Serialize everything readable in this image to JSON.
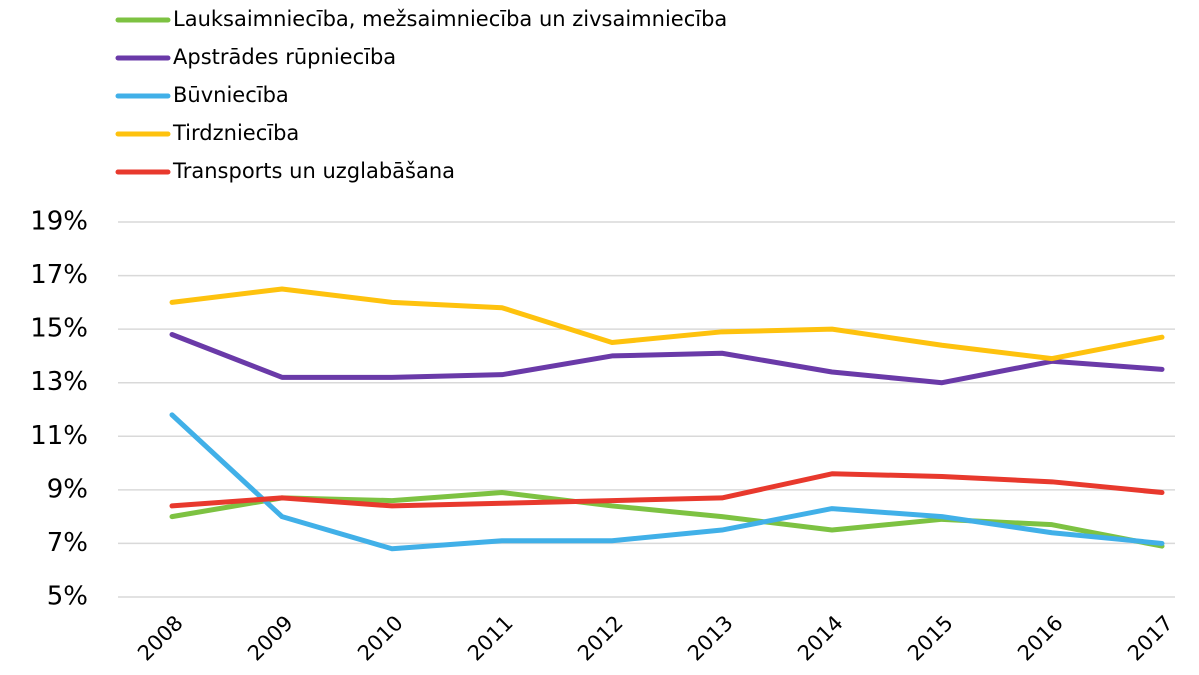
{
  "chart_data": {
    "type": "line",
    "categories": [
      "2008",
      "2009",
      "2010",
      "2011",
      "2012",
      "2013",
      "2014",
      "2015",
      "2016",
      "2017"
    ],
    "series": [
      {
        "name": "Lauksaimniecība, mežsaimniecība un zivsaimniecība",
        "color": "#7dc242",
        "values": [
          8.0,
          8.7,
          8.6,
          8.9,
          8.4,
          8.0,
          7.5,
          7.9,
          7.7,
          6.9
        ]
      },
      {
        "name": "Apstrādes rūpniecība",
        "color": "#6a3aa8",
        "values": [
          14.8,
          13.2,
          13.2,
          13.3,
          14.0,
          14.1,
          13.4,
          13.0,
          13.8,
          13.5
        ]
      },
      {
        "name": "Būvniecība",
        "color": "#41b0e8",
        "values": [
          11.8,
          8.0,
          6.8,
          7.1,
          7.1,
          7.5,
          8.3,
          8.0,
          7.4,
          7.0
        ]
      },
      {
        "name": "Tirdzniecība",
        "color": "#fec20e",
        "values": [
          16.0,
          16.5,
          16.0,
          15.8,
          14.5,
          14.9,
          15.0,
          14.4,
          13.9,
          14.7
        ]
      },
      {
        "name": "Transports un uzglabāšana",
        "color": "#e8392d",
        "values": [
          8.4,
          8.7,
          8.4,
          8.5,
          8.6,
          8.7,
          9.6,
          9.5,
          9.3,
          8.9
        ]
      }
    ],
    "ylim": [
      5,
      19
    ],
    "yticks": [
      {
        "value": 5,
        "label": "5%"
      },
      {
        "value": 7,
        "label": "7%"
      },
      {
        "value": 9,
        "label": "9%"
      },
      {
        "value": 11,
        "label": "11%"
      },
      {
        "value": 13,
        "label": "13%"
      },
      {
        "value": 15,
        "label": "15%"
      },
      {
        "value": 17,
        "label": "17%"
      },
      {
        "value": 19,
        "label": "19%"
      }
    ],
    "grid": true,
    "legend": "top-left"
  }
}
